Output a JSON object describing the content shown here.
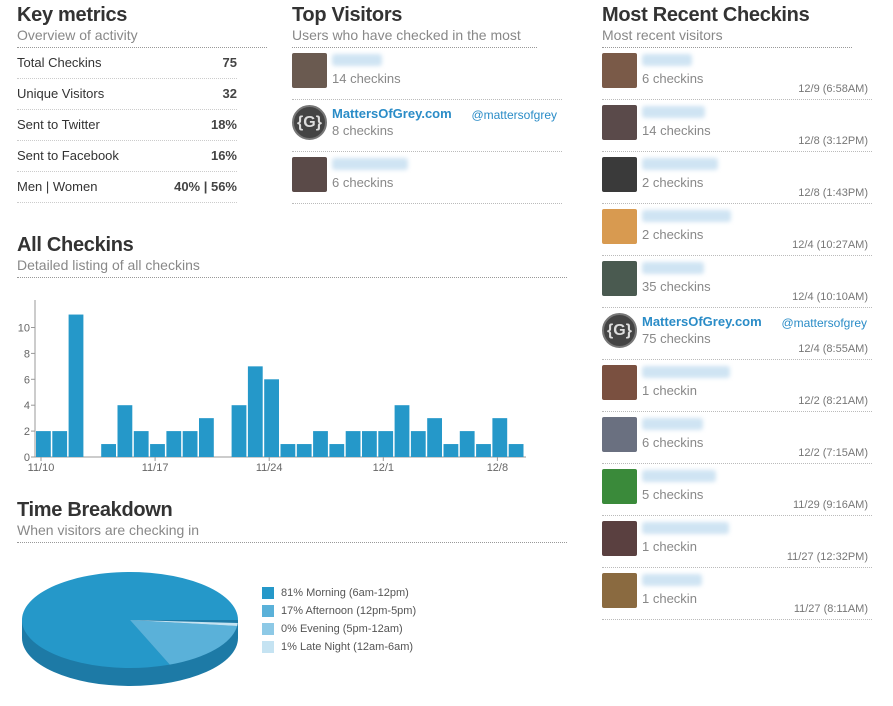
{
  "key_metrics": {
    "title": "Key metrics",
    "subtitle": "Overview of activity",
    "rows": [
      {
        "label": "Total Checkins",
        "value": "75"
      },
      {
        "label": "Unique Visitors",
        "value": "32"
      },
      {
        "label": "Sent to Twitter",
        "value": "18%"
      },
      {
        "label": "Sent to Facebook",
        "value": "16%"
      },
      {
        "label": "Men | Women",
        "value": "40% | 56%"
      }
    ]
  },
  "top_visitors": {
    "title": "Top Visitors",
    "subtitle": "Users who have checked in the most",
    "items": [
      {
        "name": "",
        "handle": "",
        "count": "14 checkins",
        "logo": false
      },
      {
        "name": "MattersOfGrey.com",
        "handle": "@mattersofgrey",
        "count": "8 checkins",
        "logo": true
      },
      {
        "name": "",
        "handle": "",
        "count": "6 checkins",
        "logo": false
      }
    ]
  },
  "all_checkins": {
    "title": "All Checkins",
    "subtitle": "Detailed listing of all checkins"
  },
  "chart_data": [
    {
      "type": "bar",
      "categories": [
        "11/10",
        "11/11",
        "11/12",
        "11/13",
        "11/14",
        "11/15",
        "11/16",
        "11/17",
        "11/18",
        "11/19",
        "11/20",
        "11/21",
        "11/22",
        "11/23",
        "11/24",
        "11/25",
        "11/26",
        "11/27",
        "11/28",
        "11/29",
        "11/30",
        "12/1",
        "12/2",
        "12/3",
        "12/4",
        "12/5",
        "12/6",
        "12/7",
        "12/8",
        "12/9"
      ],
      "values": [
        2,
        2,
        11,
        0,
        1,
        4,
        2,
        1,
        2,
        2,
        3,
        0,
        4,
        7,
        6,
        1,
        1,
        2,
        1,
        2,
        2,
        2,
        4,
        2,
        3,
        1,
        2,
        1,
        3,
        1
      ],
      "ylim": [
        0,
        12
      ],
      "yticks": [
        "0",
        "2",
        "4",
        "6",
        "8",
        "10"
      ],
      "xticks": [
        "11/10",
        "11/17",
        "11/24",
        "12/1",
        "12/8"
      ],
      "color": "#2598c9"
    },
    {
      "type": "pie",
      "title": "Time Breakdown",
      "subtitle": "When visitors are checking in",
      "slices": [
        {
          "label": "81% Morning (6am-12pm)",
          "value": 81,
          "color": "#2598c9"
        },
        {
          "label": "17% Afternoon (12pm-5pm)",
          "value": 17,
          "color": "#5ab1d9"
        },
        {
          "label": "0% Evening (5pm-12am)",
          "value": 0,
          "color": "#8dc9e6"
        },
        {
          "label": "1% Late Night (12am-6am)",
          "value": 1,
          "color": "#c5e3f2"
        }
      ]
    }
  ],
  "recent": {
    "title": "Most Recent Checkins",
    "subtitle": "Most recent visitors",
    "items": [
      {
        "name": "",
        "handle": "",
        "count": "6 checkins",
        "time": "12/9 (6:58AM)",
        "logo": false,
        "c": "#7a5a48"
      },
      {
        "name": "",
        "handle": "",
        "count": "14 checkins",
        "time": "12/8 (3:12PM)",
        "logo": false,
        "c": "#5a4a4a"
      },
      {
        "name": "",
        "handle": "",
        "count": "2 checkins",
        "time": "12/8 (1:43PM)",
        "logo": false,
        "c": "#3a3a3a"
      },
      {
        "name": "",
        "handle": "",
        "count": "2 checkins",
        "time": "12/4 (10:27AM)",
        "logo": false,
        "c": "#d89a50"
      },
      {
        "name": "",
        "handle": "",
        "count": "35 checkins",
        "time": "12/4 (10:10AM)",
        "logo": false,
        "c": "#4a5a50"
      },
      {
        "name": "MattersOfGrey.com",
        "handle": "@mattersofgrey",
        "count": "75 checkins",
        "time": "12/4 (8:55AM)",
        "logo": true,
        "c": ""
      },
      {
        "name": "",
        "handle": "",
        "count": "1 checkin",
        "time": "12/2 (8:21AM)",
        "logo": false,
        "c": "#7a5040"
      },
      {
        "name": "",
        "handle": "",
        "count": "6 checkins",
        "time": "12/2 (7:15AM)",
        "logo": false,
        "c": "#6a7080"
      },
      {
        "name": "",
        "handle": "",
        "count": "5 checkins",
        "time": "11/29 (9:16AM)",
        "logo": false,
        "c": "#3a8a3a"
      },
      {
        "name": "",
        "handle": "",
        "count": "1 checkin",
        "time": "11/27 (12:32PM)",
        "logo": false,
        "c": "#5a4040"
      },
      {
        "name": "",
        "handle": "",
        "count": "1 checkin",
        "time": "11/27 (8:11AM)",
        "logo": false,
        "c": "#8a6a40"
      }
    ]
  }
}
